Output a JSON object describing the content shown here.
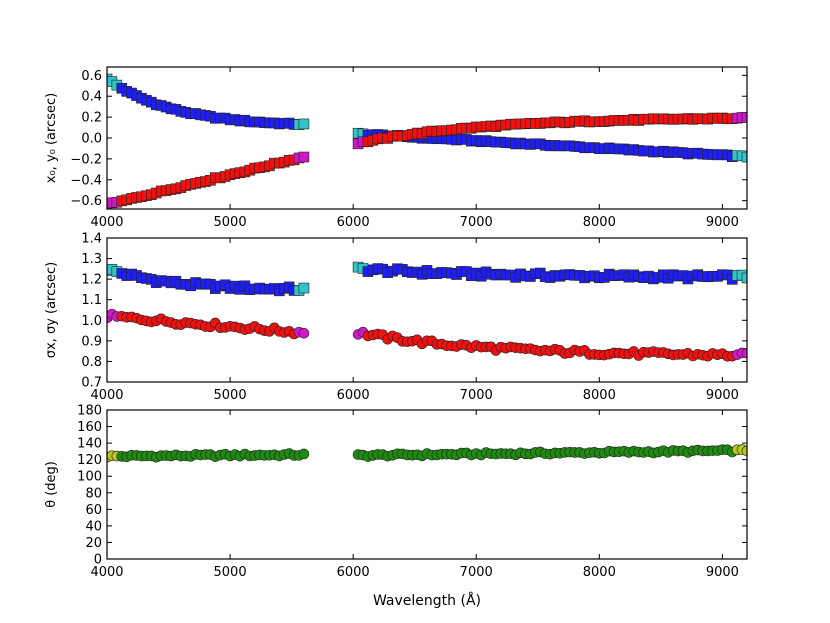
{
  "chart_data": [
    {
      "type": "scatter",
      "panel": "top",
      "ylabel": "x₀, y₀ (arcsec)",
      "xlim": [
        4000,
        9200
      ],
      "ylim": [
        -0.68,
        0.68
      ],
      "xticks": [
        4000,
        5000,
        6000,
        7000,
        8000,
        9000
      ],
      "xtick_labels": [
        "4000",
        "5000",
        "6000",
        "7000",
        "8000",
        "9000"
      ],
      "yticks": [
        -0.6,
        -0.4,
        -0.2,
        0.0,
        0.2,
        0.4,
        0.6
      ],
      "ytick_labels": [
        "−0.6",
        "−0.4",
        "−0.2",
        "0.0",
        "0.2",
        "0.4",
        "0.6"
      ],
      "gap": [
        5600,
        6020
      ],
      "series": [
        {
          "name": "x0",
          "marker": "square",
          "color": "#1f1ff2",
          "edge_color": "#0000ff",
          "color_blue_side": "#31c4c9",
          "color_red_side": "#31c4c9",
          "points_seg1": {
            "start": 4000,
            "end": 5580,
            "y_start": 0.57,
            "y_end": 0.13,
            "shape": "decay"
          },
          "points_seg2": {
            "start": 6040,
            "end": 9180,
            "y_start": 0.04,
            "y_end": -0.18,
            "shape": "linear"
          }
        },
        {
          "name": "y0",
          "marker": "square",
          "color": "#f01010",
          "color_blue_side": "#d018c8",
          "color_red_side": "#d018c8",
          "points_seg1": {
            "start": 4000,
            "end": 5580,
            "y_start": -0.64,
            "y_end": -0.18,
            "shape": "linear"
          },
          "points_seg2": {
            "start": 6040,
            "end": 9180,
            "y_start": -0.05,
            "y_end": 0.19,
            "shape": "decay"
          }
        }
      ]
    },
    {
      "type": "scatter",
      "panel": "middle",
      "ylabel": "σx, σy (arcsec)",
      "xlim": [
        4000,
        9200
      ],
      "ylim": [
        0.7,
        1.4
      ],
      "xticks": [
        4000,
        5000,
        6000,
        7000,
        8000,
        9000
      ],
      "xtick_labels": [
        "4000",
        "5000",
        "6000",
        "7000",
        "8000",
        "9000"
      ],
      "yticks": [
        0.7,
        0.8,
        0.9,
        1.0,
        1.1,
        1.2,
        1.3,
        1.4
      ],
      "ytick_labels": [
        "0.7",
        "0.8",
        "0.9",
        "1.0",
        "1.1",
        "1.2",
        "1.3",
        "1.4"
      ],
      "series": [
        {
          "name": "sigma_x",
          "marker": "square",
          "color": "#1f1ff2",
          "color_blue_side": "#31c4c9",
          "points_seg1": {
            "start": 4000,
            "end": 5580,
            "y_start": 1.25,
            "y_end": 1.15,
            "shape": "decay"
          },
          "points_seg2": {
            "start": 6040,
            "end": 9180,
            "y_start": 1.25,
            "y_end": 1.21,
            "shape": "decay"
          }
        },
        {
          "name": "sigma_y",
          "marker": "circle",
          "color": "#f01010",
          "color_blue_side": "#d018c8",
          "points_seg1": {
            "start": 4000,
            "end": 5580,
            "y_start": 1.02,
            "y_end": 0.94,
            "shape": "linear"
          },
          "points_seg2": {
            "start": 6040,
            "end": 9180,
            "y_start": 0.94,
            "y_end": 0.83,
            "shape": "decay"
          }
        }
      ]
    },
    {
      "type": "scatter",
      "panel": "bottom",
      "ylabel": "θ (deg)",
      "xlabel": "Wavelength (Å)",
      "xlim": [
        4000,
        9200
      ],
      "ylim": [
        0,
        180
      ],
      "xticks": [
        4000,
        5000,
        6000,
        7000,
        8000,
        9000
      ],
      "xtick_labels": [
        "4000",
        "5000",
        "6000",
        "7000",
        "8000",
        "9000"
      ],
      "yticks": [
        0,
        20,
        40,
        60,
        80,
        100,
        120,
        140,
        160,
        180
      ],
      "ytick_labels": [
        "0",
        "20",
        "40",
        "60",
        "80",
        "100",
        "120",
        "140",
        "160",
        "180"
      ],
      "series": [
        {
          "name": "theta",
          "marker": "circle",
          "color": "#1f8a10",
          "color_blue_side": "#b8c81c",
          "points_seg1": {
            "start": 4000,
            "end": 5580,
            "y_start": 124,
            "y_end": 126,
            "shape": "flat"
          },
          "points_seg2": {
            "start": 6040,
            "end": 9180,
            "y_start": 125,
            "y_end": 131,
            "shape": "flat"
          }
        }
      ]
    }
  ]
}
